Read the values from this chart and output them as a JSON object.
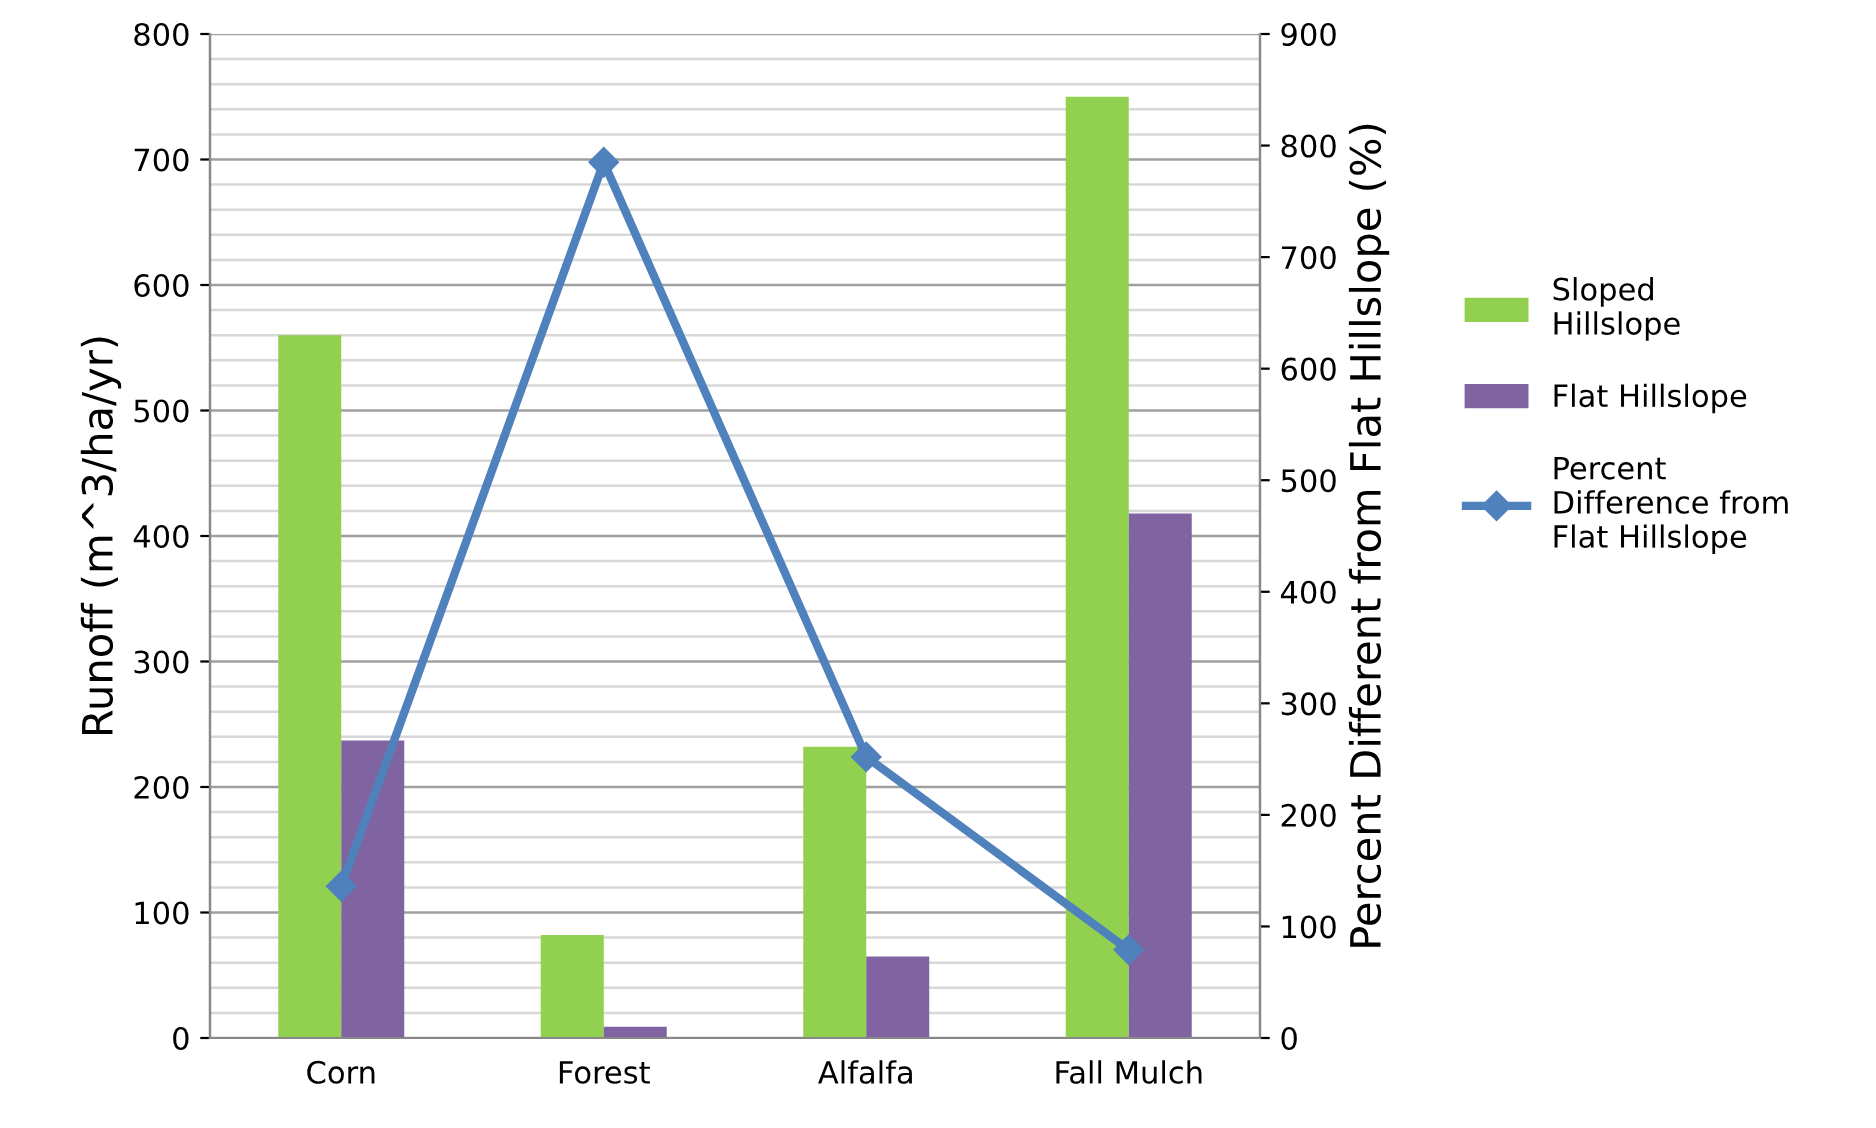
{
  "chart_data": {
    "type": "bar",
    "categories": [
      "Corn",
      "Forest",
      "Alfalfa",
      "Fall Mulch"
    ],
    "ylabel": "Runoff (m^3/ha/yr)",
    "y2label": "Percent Different from Flat Hillslope (%)",
    "series": [
      {
        "name": "Sloped Hillslope",
        "color": "#92d050",
        "values": [
          560,
          82,
          232,
          750
        ]
      },
      {
        "name": "Flat Hillslope",
        "color": "#8064a2",
        "values": [
          237,
          9,
          65,
          418
        ]
      },
      {
        "name": "Percent Difference from Flat Hillslope",
        "type": "line",
        "axis": "y2",
        "color": "#4f81bd",
        "values": [
          136,
          785,
          252,
          79
        ],
        "marker": "diamond"
      }
    ],
    "ylim": [
      0,
      800
    ],
    "yticks": [
      0,
      {
        "value": 20,
        "label": null
      },
      {
        "value": 40,
        "label": null
      },
      {
        "value": 60,
        "label": null
      },
      {
        "value": 80,
        "label": null
      },
      100,
      {
        "value": 120,
        "label": null
      },
      {
        "value": 140,
        "label": null
      },
      {
        "value": 160,
        "label": null
      },
      {
        "value": 180,
        "label": null
      },
      200,
      {
        "value": 220,
        "label": null
      },
      {
        "value": 240,
        "label": null
      },
      {
        "value": 260,
        "label": null
      },
      {
        "value": 280,
        "label": null
      },
      300,
      {
        "value": 320,
        "label": null
      },
      {
        "value": 340,
        "label": null
      },
      {
        "value": 360,
        "label": null
      },
      {
        "value": 380,
        "label": null
      },
      400,
      {
        "value": 420,
        "label": null
      },
      {
        "value": 440,
        "label": null
      },
      {
        "value": 460,
        "label": null
      },
      {
        "value": 480,
        "label": null
      },
      500,
      {
        "value": 520,
        "label": null
      },
      {
        "value": 540,
        "label": null
      },
      {
        "value": 560,
        "label": null
      },
      {
        "value": 580,
        "label": null
      },
      600,
      {
        "value": 620,
        "label": null
      },
      {
        "value": 640,
        "label": null
      },
      {
        "value": 660,
        "label": null
      },
      {
        "value": 680,
        "label": null
      },
      700,
      {
        "value": 720,
        "label": null
      },
      {
        "value": 740,
        "label": null
      },
      {
        "value": 760,
        "label": null
      },
      {
        "value": 780,
        "label": null
      },
      800
    ],
    "y2lim": [
      0,
      900
    ],
    "y2ticks": [
      0,
      100,
      200,
      300,
      400,
      500,
      600,
      700,
      800,
      900
    ],
    "grid": "y",
    "legend": "right"
  }
}
